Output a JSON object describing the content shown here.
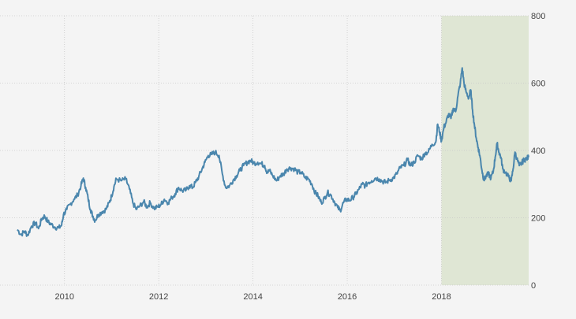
{
  "chart_data": {
    "type": "line",
    "title": "",
    "xlabel": "",
    "ylabel": "",
    "xlim": [
      2009.0,
      2019.85
    ],
    "ylim": [
      0,
      800
    ],
    "x_ticks": [
      {
        "value": 2010,
        "label": "2010"
      },
      {
        "value": 2012,
        "label": "2012"
      },
      {
        "value": 2014,
        "label": "2014"
      },
      {
        "value": 2016,
        "label": "2016"
      },
      {
        "value": 2018,
        "label": "2018"
      }
    ],
    "y_ticks": [
      {
        "value": 0,
        "label": "0"
      },
      {
        "value": 200,
        "label": "200"
      },
      {
        "value": 400,
        "label": "400"
      },
      {
        "value": 600,
        "label": "600"
      },
      {
        "value": 800,
        "label": "800"
      }
    ],
    "y_axis_side": "right",
    "grid": true,
    "legend": "none",
    "highlight_region": {
      "x_from": 2018.0,
      "x_to": 2019.85,
      "color": "#dfe6d4"
    },
    "series": [
      {
        "color": "#4a86ad",
        "points": [
          [
            2009.0,
            165
          ],
          [
            2009.08,
            150
          ],
          [
            2009.15,
            160
          ],
          [
            2009.22,
            148
          ],
          [
            2009.3,
            175
          ],
          [
            2009.38,
            185
          ],
          [
            2009.45,
            168
          ],
          [
            2009.52,
            198
          ],
          [
            2009.58,
            205
          ],
          [
            2009.65,
            188
          ],
          [
            2009.72,
            180
          ],
          [
            2009.8,
            172
          ],
          [
            2009.88,
            170
          ],
          [
            2009.94,
            178
          ],
          [
            2009.98,
            210
          ],
          [
            2010.05,
            225
          ],
          [
            2010.12,
            240
          ],
          [
            2010.2,
            255
          ],
          [
            2010.28,
            268
          ],
          [
            2010.35,
            295
          ],
          [
            2010.4,
            318
          ],
          [
            2010.45,
            290
          ],
          [
            2010.5,
            258
          ],
          [
            2010.55,
            225
          ],
          [
            2010.6,
            205
          ],
          [
            2010.65,
            192
          ],
          [
            2010.72,
            210
          ],
          [
            2010.8,
            218
          ],
          [
            2010.88,
            225
          ],
          [
            2010.95,
            245
          ],
          [
            2011.0,
            265
          ],
          [
            2011.05,
            292
          ],
          [
            2011.1,
            315
          ],
          [
            2011.2,
            310
          ],
          [
            2011.3,
            315
          ],
          [
            2011.38,
            285
          ],
          [
            2011.45,
            245
          ],
          [
            2011.52,
            225
          ],
          [
            2011.6,
            235
          ],
          [
            2011.68,
            248
          ],
          [
            2011.75,
            232
          ],
          [
            2011.82,
            245
          ],
          [
            2011.9,
            228
          ],
          [
            2011.98,
            232
          ],
          [
            2012.05,
            240
          ],
          [
            2012.12,
            255
          ],
          [
            2012.2,
            245
          ],
          [
            2012.28,
            260
          ],
          [
            2012.35,
            272
          ],
          [
            2012.42,
            290
          ],
          [
            2012.5,
            280
          ],
          [
            2012.58,
            282
          ],
          [
            2012.65,
            295
          ],
          [
            2012.72,
            290
          ],
          [
            2012.78,
            305
          ],
          [
            2012.85,
            322
          ],
          [
            2012.92,
            345
          ],
          [
            2012.98,
            365
          ],
          [
            2013.05,
            385
          ],
          [
            2013.12,
            388
          ],
          [
            2013.2,
            395
          ],
          [
            2013.28,
            385
          ],
          [
            2013.35,
            330
          ],
          [
            2013.42,
            290
          ],
          [
            2013.5,
            295
          ],
          [
            2013.58,
            312
          ],
          [
            2013.65,
            325
          ],
          [
            2013.72,
            340
          ],
          [
            2013.8,
            355
          ],
          [
            2013.88,
            365
          ],
          [
            2013.95,
            370
          ],
          [
            2014.02,
            362
          ],
          [
            2014.1,
            365
          ],
          [
            2014.18,
            360
          ],
          [
            2014.25,
            355
          ],
          [
            2014.3,
            335
          ],
          [
            2014.35,
            340
          ],
          [
            2014.42,
            325
          ],
          [
            2014.5,
            310
          ],
          [
            2014.58,
            325
          ],
          [
            2014.65,
            330
          ],
          [
            2014.72,
            345
          ],
          [
            2014.8,
            348
          ],
          [
            2014.88,
            345
          ],
          [
            2014.95,
            335
          ],
          [
            2015.02,
            335
          ],
          [
            2015.1,
            320
          ],
          [
            2015.18,
            315
          ],
          [
            2015.25,
            300
          ],
          [
            2015.32,
            275
          ],
          [
            2015.38,
            265
          ],
          [
            2015.45,
            245
          ],
          [
            2015.52,
            258
          ],
          [
            2015.58,
            275
          ],
          [
            2015.65,
            268
          ],
          [
            2015.72,
            250
          ],
          [
            2015.8,
            230
          ],
          [
            2015.85,
            222
          ],
          [
            2015.92,
            245
          ],
          [
            2015.98,
            255
          ],
          [
            2016.05,
            252
          ],
          [
            2016.12,
            260
          ],
          [
            2016.18,
            270
          ],
          [
            2016.25,
            285
          ],
          [
            2016.32,
            300
          ],
          [
            2016.38,
            295
          ],
          [
            2016.45,
            305
          ],
          [
            2016.52,
            310
          ],
          [
            2016.6,
            318
          ],
          [
            2016.68,
            315
          ],
          [
            2016.75,
            308
          ],
          [
            2016.82,
            305
          ],
          [
            2016.9,
            312
          ],
          [
            2016.98,
            318
          ],
          [
            2017.05,
            330
          ],
          [
            2017.12,
            348
          ],
          [
            2017.2,
            355
          ],
          [
            2017.28,
            372
          ],
          [
            2017.35,
            355
          ],
          [
            2017.42,
            365
          ],
          [
            2017.5,
            385
          ],
          [
            2017.58,
            375
          ],
          [
            2017.65,
            392
          ],
          [
            2017.72,
            395
          ],
          [
            2017.8,
            418
          ],
          [
            2017.88,
            425
          ],
          [
            2017.92,
            478
          ],
          [
            2017.96,
            455
          ],
          [
            2018.0,
            428
          ],
          [
            2018.05,
            468
          ],
          [
            2018.1,
            485
          ],
          [
            2018.15,
            508
          ],
          [
            2018.2,
            495
          ],
          [
            2018.25,
            525
          ],
          [
            2018.3,
            515
          ],
          [
            2018.35,
            562
          ],
          [
            2018.4,
            600
          ],
          [
            2018.44,
            645
          ],
          [
            2018.48,
            598
          ],
          [
            2018.52,
            575
          ],
          [
            2018.58,
            555
          ],
          [
            2018.62,
            580
          ],
          [
            2018.66,
            520
          ],
          [
            2018.7,
            475
          ],
          [
            2018.74,
            435
          ],
          [
            2018.78,
            408
          ],
          [
            2018.82,
            380
          ],
          [
            2018.86,
            340
          ],
          [
            2018.9,
            312
          ],
          [
            2018.95,
            325
          ],
          [
            2019.0,
            330
          ],
          [
            2019.05,
            318
          ],
          [
            2019.1,
            338
          ],
          [
            2019.14,
            380
          ],
          [
            2019.18,
            420
          ],
          [
            2019.22,
            395
          ],
          [
            2019.26,
            380
          ],
          [
            2019.3,
            345
          ],
          [
            2019.36,
            335
          ],
          [
            2019.42,
            322
          ],
          [
            2019.48,
            310
          ],
          [
            2019.52,
            345
          ],
          [
            2019.56,
            395
          ],
          [
            2019.6,
            375
          ],
          [
            2019.65,
            355
          ],
          [
            2019.7,
            362
          ],
          [
            2019.75,
            372
          ],
          [
            2019.8,
            375
          ],
          [
            2019.85,
            380
          ]
        ]
      }
    ]
  }
}
